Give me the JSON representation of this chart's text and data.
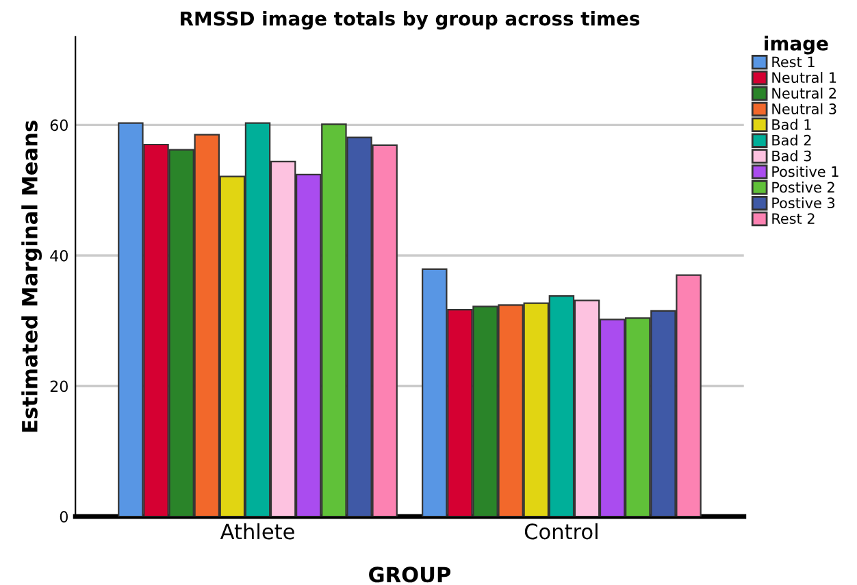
{
  "chart_data": {
    "type": "bar",
    "title": "RMSSD image totals by group across times",
    "xlabel": "GROUP",
    "ylabel": "Estimated Marginal Means",
    "legend_title": "image",
    "categories": [
      "Athlete",
      "Control"
    ],
    "series": [
      {
        "name": "Rest 1",
        "color": "#5896e4",
        "values": [
          60.3,
          37.9
        ]
      },
      {
        "name": "Neutral 1",
        "color": "#d50032",
        "values": [
          57.0,
          31.7
        ]
      },
      {
        "name": "Neutral 2",
        "color": "#2a8429",
        "values": [
          56.2,
          32.2
        ]
      },
      {
        "name": "Neutral 3",
        "color": "#f2682b",
        "values": [
          58.5,
          32.4
        ]
      },
      {
        "name": "Bad 1",
        "color": "#e1d512",
        "values": [
          52.1,
          32.7
        ]
      },
      {
        "name": "Bad 2",
        "color": "#00af99",
        "values": [
          60.3,
          33.8
        ]
      },
      {
        "name": "Bad 3",
        "color": "#fdc2e0",
        "values": [
          54.4,
          33.1
        ]
      },
      {
        "name": "Positive 1",
        "color": "#aa4cef",
        "values": [
          52.4,
          30.2
        ]
      },
      {
        "name": "Postive 2",
        "color": "#60c139",
        "values": [
          60.1,
          30.4
        ]
      },
      {
        "name": "Postive 3",
        "color": "#3f59a6",
        "values": [
          58.1,
          31.5
        ]
      },
      {
        "name": "Rest 2",
        "color": "#fc82b2",
        "values": [
          56.9,
          37.0
        ]
      }
    ],
    "ylim": [
      0,
      73.5
    ],
    "yticks": [
      0,
      20,
      40,
      60
    ],
    "grid": "y",
    "legend": "right"
  }
}
